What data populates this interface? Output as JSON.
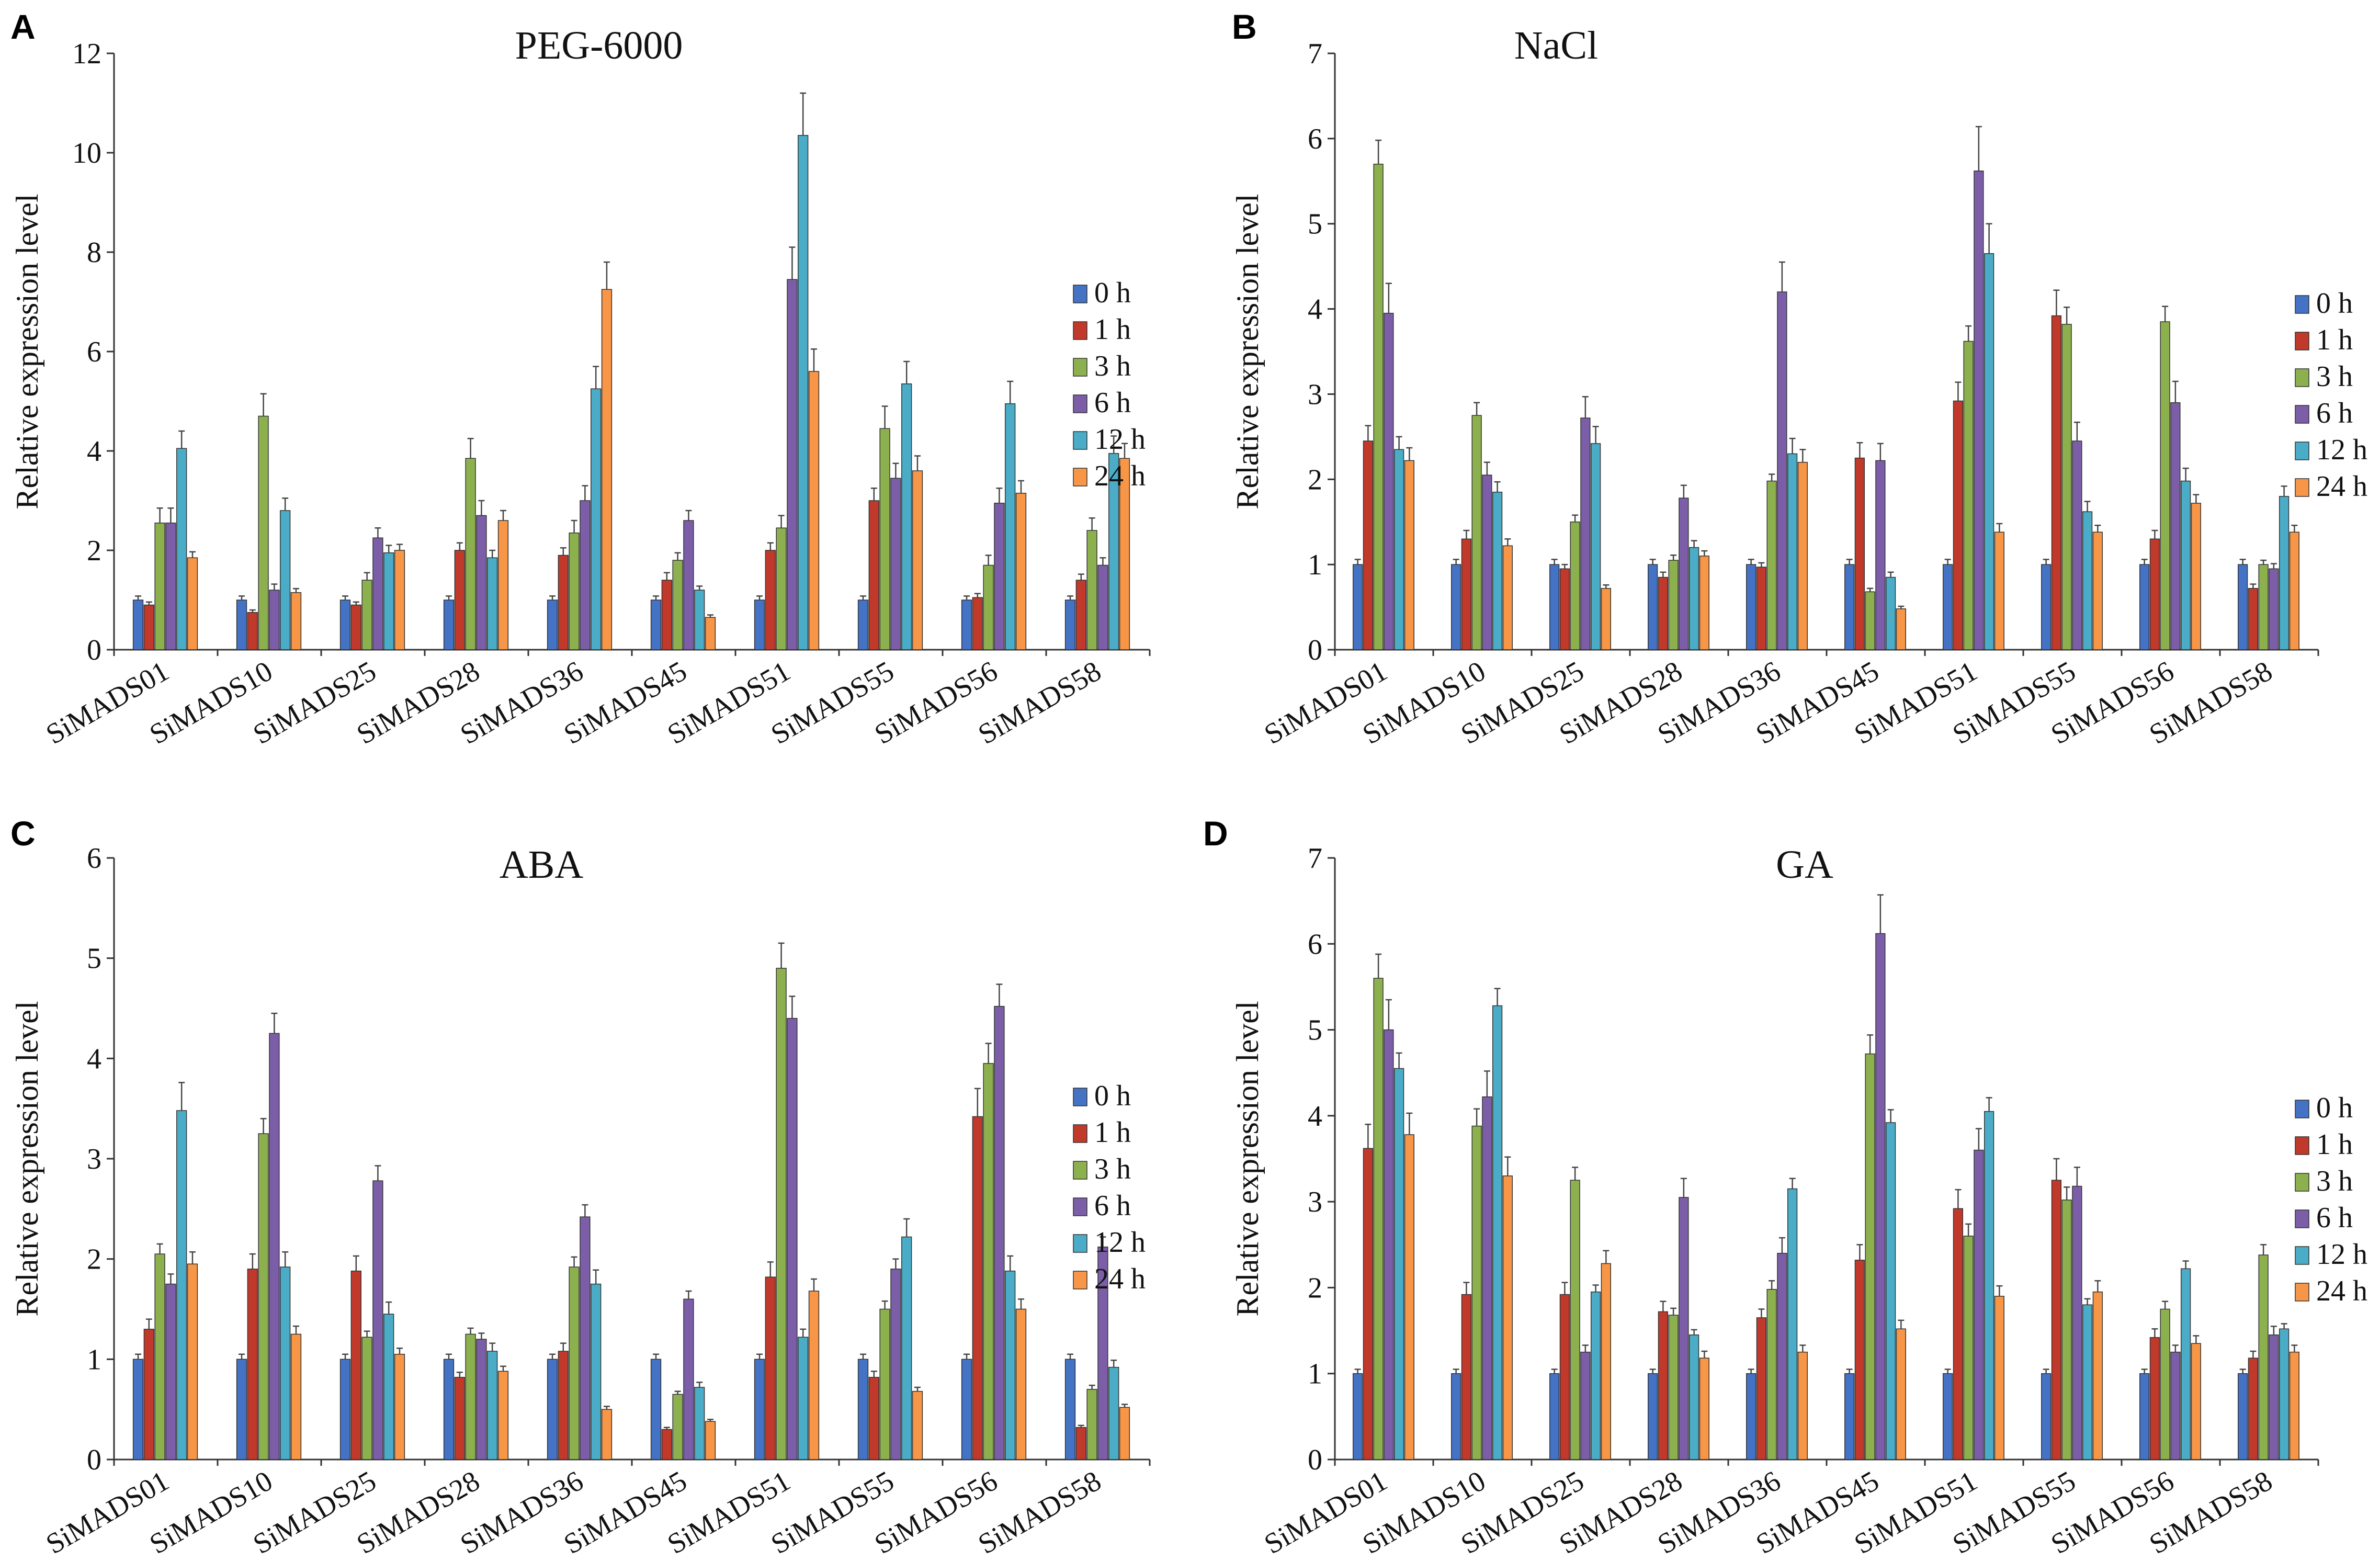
{
  "chart_data": [
    {
      "panel": "A",
      "type": "bar",
      "title": "PEG-6000",
      "ylabel": "Relative  expression level",
      "xlabel": "",
      "ylim": [
        0,
        12
      ],
      "yticks": [
        0,
        2,
        4,
        6,
        8,
        10,
        12
      ],
      "categories": [
        "SiMADS01",
        "SiMADS10",
        "SiMADS25",
        "SiMADS28",
        "SiMADS36",
        "SiMADS45",
        "SiMADS51",
        "SiMADS55",
        "SiMADS56",
        "SiMADS58"
      ],
      "series": [
        {
          "name": "0 h",
          "color": "#4472C4",
          "values": [
            1.0,
            1.0,
            1.0,
            1.0,
            1.0,
            1.0,
            1.0,
            1.0,
            1.0,
            1.0
          ],
          "errors": [
            0.08,
            0.08,
            0.08,
            0.08,
            0.08,
            0.08,
            0.08,
            0.08,
            0.08,
            0.08
          ]
        },
        {
          "name": "1 h",
          "color": "#C0392B",
          "values": [
            0.9,
            0.75,
            0.9,
            2.0,
            1.9,
            1.4,
            2.0,
            3.0,
            1.05,
            1.4
          ],
          "errors": [
            0.06,
            0.05,
            0.06,
            0.15,
            0.15,
            0.15,
            0.15,
            0.25,
            0.08,
            0.12
          ]
        },
        {
          "name": "3 h",
          "color": "#8DB04F",
          "values": [
            2.55,
            4.7,
            1.4,
            3.85,
            2.35,
            1.8,
            2.45,
            4.45,
            1.7,
            2.4
          ],
          "errors": [
            0.3,
            0.45,
            0.15,
            0.4,
            0.25,
            0.15,
            0.25,
            0.45,
            0.2,
            0.25
          ]
        },
        {
          "name": "6 h",
          "color": "#7B5EA7",
          "values": [
            2.55,
            1.2,
            2.25,
            2.7,
            3.0,
            2.6,
            7.45,
            3.45,
            2.95,
            1.7
          ],
          "errors": [
            0.3,
            0.12,
            0.2,
            0.3,
            0.3,
            0.2,
            0.65,
            0.3,
            0.3,
            0.15
          ]
        },
        {
          "name": "12 h",
          "color": "#4AACC6",
          "values": [
            4.05,
            2.8,
            1.95,
            1.85,
            5.25,
            1.2,
            10.35,
            5.35,
            4.95,
            3.95
          ],
          "errors": [
            0.35,
            0.25,
            0.15,
            0.15,
            0.45,
            0.08,
            0.85,
            0.45,
            0.45,
            0.35
          ]
        },
        {
          "name": "24 h",
          "color": "#F79646",
          "values": [
            1.85,
            1.15,
            2.0,
            2.6,
            7.25,
            0.65,
            5.6,
            3.6,
            3.15,
            3.85
          ],
          "errors": [
            0.12,
            0.08,
            0.12,
            0.2,
            0.55,
            0.05,
            0.45,
            0.3,
            0.25,
            0.3
          ]
        }
      ]
    },
    {
      "panel": "B",
      "type": "bar",
      "title": "NaCl",
      "ylabel": "Relative  expression level",
      "xlabel": "",
      "ylim": [
        0,
        7
      ],
      "yticks": [
        0,
        1,
        2,
        3,
        4,
        5,
        6,
        7
      ],
      "categories": [
        "SiMADS01",
        "SiMADS10",
        "SiMADS25",
        "SiMADS28",
        "SiMADS36",
        "SiMADS45",
        "SiMADS51",
        "SiMADS55",
        "SiMADS56",
        "SiMADS58"
      ],
      "series": [
        {
          "name": "0 h",
          "color": "#4472C4",
          "values": [
            1.0,
            1.0,
            1.0,
            1.0,
            1.0,
            1.0,
            1.0,
            1.0,
            1.0,
            1.0
          ],
          "errors": [
            0.06,
            0.06,
            0.06,
            0.06,
            0.06,
            0.06,
            0.06,
            0.06,
            0.06,
            0.06
          ]
        },
        {
          "name": "1 h",
          "color": "#C0392B",
          "values": [
            2.45,
            1.3,
            0.95,
            0.85,
            0.97,
            2.25,
            2.92,
            3.92,
            1.3,
            0.72
          ],
          "errors": [
            0.18,
            0.1,
            0.05,
            0.06,
            0.05,
            0.18,
            0.22,
            0.3,
            0.1,
            0.05
          ]
        },
        {
          "name": "3 h",
          "color": "#8DB04F",
          "values": [
            5.7,
            2.75,
            1.5,
            1.05,
            1.98,
            0.68,
            3.62,
            3.82,
            3.85,
            1.0
          ],
          "errors": [
            0.28,
            0.15,
            0.08,
            0.06,
            0.08,
            0.04,
            0.18,
            0.2,
            0.18,
            0.05
          ]
        },
        {
          "name": "6 h",
          "color": "#7B5EA7",
          "values": [
            3.95,
            2.05,
            2.72,
            1.78,
            4.2,
            2.22,
            5.62,
            2.45,
            2.9,
            0.95
          ],
          "errors": [
            0.35,
            0.15,
            0.25,
            0.15,
            0.35,
            0.2,
            0.52,
            0.22,
            0.25,
            0.06
          ]
        },
        {
          "name": "12 h",
          "color": "#4AACC6",
          "values": [
            2.35,
            1.85,
            2.42,
            1.2,
            2.3,
            0.85,
            4.65,
            1.62,
            1.98,
            1.8
          ],
          "errors": [
            0.15,
            0.12,
            0.2,
            0.08,
            0.18,
            0.06,
            0.35,
            0.12,
            0.15,
            0.12
          ]
        },
        {
          "name": "24 h",
          "color": "#F79646",
          "values": [
            2.22,
            1.22,
            0.72,
            1.1,
            2.2,
            0.48,
            1.38,
            1.38,
            1.72,
            1.38
          ],
          "errors": [
            0.15,
            0.08,
            0.04,
            0.06,
            0.15,
            0.03,
            0.1,
            0.08,
            0.1,
            0.08
          ]
        }
      ]
    },
    {
      "panel": "C",
      "type": "bar",
      "title": "ABA",
      "ylabel": "Relative  expression level",
      "xlabel": "",
      "ylim": [
        0,
        6
      ],
      "yticks": [
        0,
        1,
        2,
        3,
        4,
        5,
        6
      ],
      "categories": [
        "SiMADS01",
        "SiMADS10",
        "SiMADS25",
        "SiMADS28",
        "SiMADS36",
        "SiMADS45",
        "SiMADS51",
        "SiMADS55",
        "SiMADS56",
        "SiMADS58"
      ],
      "series": [
        {
          "name": "0 h",
          "color": "#4472C4",
          "values": [
            1.0,
            1.0,
            1.0,
            1.0,
            1.0,
            1.0,
            1.0,
            1.0,
            1.0,
            1.0
          ],
          "errors": [
            0.05,
            0.05,
            0.05,
            0.05,
            0.05,
            0.05,
            0.05,
            0.05,
            0.05,
            0.05
          ]
        },
        {
          "name": "1 h",
          "color": "#C0392B",
          "values": [
            1.3,
            1.9,
            1.88,
            0.82,
            1.08,
            0.3,
            1.82,
            0.82,
            3.42,
            0.32
          ],
          "errors": [
            0.1,
            0.15,
            0.15,
            0.05,
            0.08,
            0.02,
            0.15,
            0.06,
            0.28,
            0.02
          ]
        },
        {
          "name": "3 h",
          "color": "#8DB04F",
          "values": [
            2.05,
            3.25,
            1.22,
            1.25,
            1.92,
            0.65,
            4.9,
            1.5,
            3.95,
            0.7
          ],
          "errors": [
            0.1,
            0.15,
            0.06,
            0.06,
            0.1,
            0.03,
            0.25,
            0.08,
            0.2,
            0.04
          ]
        },
        {
          "name": "6 h",
          "color": "#7B5EA7",
          "values": [
            1.75,
            4.25,
            2.78,
            1.2,
            2.42,
            1.6,
            4.4,
            1.9,
            4.52,
            2.12
          ],
          "errors": [
            0.1,
            0.2,
            0.15,
            0.06,
            0.12,
            0.08,
            0.22,
            0.1,
            0.22,
            0.1
          ]
        },
        {
          "name": "12 h",
          "color": "#4AACC6",
          "values": [
            3.48,
            1.92,
            1.45,
            1.08,
            1.75,
            0.72,
            1.22,
            2.22,
            1.88,
            0.92
          ],
          "errors": [
            0.28,
            0.15,
            0.12,
            0.08,
            0.14,
            0.05,
            0.08,
            0.18,
            0.15,
            0.07
          ]
        },
        {
          "name": "24 h",
          "color": "#F79646",
          "values": [
            1.95,
            1.25,
            1.05,
            0.88,
            0.5,
            0.38,
            1.68,
            0.68,
            1.5,
            0.52
          ],
          "errors": [
            0.12,
            0.08,
            0.06,
            0.05,
            0.03,
            0.02,
            0.12,
            0.04,
            0.1,
            0.03
          ]
        }
      ]
    },
    {
      "panel": "D",
      "type": "bar",
      "title": "GA",
      "ylabel": "Relative  expression level",
      "xlabel": "",
      "ylim": [
        0,
        7
      ],
      "yticks": [
        0,
        1,
        2,
        3,
        4,
        5,
        6,
        7
      ],
      "categories": [
        "SiMADS01",
        "SiMADS10",
        "SiMADS25",
        "SiMADS28",
        "SiMADS36",
        "SiMADS45",
        "SiMADS51",
        "SiMADS55",
        "SiMADS56",
        "SiMADS58"
      ],
      "series": [
        {
          "name": "0 h",
          "color": "#4472C4",
          "values": [
            1.0,
            1.0,
            1.0,
            1.0,
            1.0,
            1.0,
            1.0,
            1.0,
            1.0,
            1.0
          ],
          "errors": [
            0.05,
            0.05,
            0.05,
            0.05,
            0.05,
            0.05,
            0.05,
            0.05,
            0.05,
            0.05
          ]
        },
        {
          "name": "1 h",
          "color": "#C0392B",
          "values": [
            3.62,
            1.92,
            1.92,
            1.72,
            1.65,
            2.32,
            2.92,
            3.25,
            1.42,
            1.18
          ],
          "errors": [
            0.28,
            0.14,
            0.14,
            0.12,
            0.1,
            0.18,
            0.22,
            0.25,
            0.1,
            0.08
          ]
        },
        {
          "name": "3 h",
          "color": "#8DB04F",
          "values": [
            5.6,
            3.88,
            3.25,
            1.68,
            1.98,
            4.72,
            2.6,
            3.02,
            1.75,
            2.38
          ],
          "errors": [
            0.28,
            0.2,
            0.15,
            0.08,
            0.1,
            0.22,
            0.14,
            0.15,
            0.09,
            0.12
          ]
        },
        {
          "name": "6 h",
          "color": "#7B5EA7",
          "values": [
            5.0,
            4.22,
            1.25,
            3.05,
            2.4,
            6.12,
            3.6,
            3.18,
            1.25,
            1.45
          ],
          "errors": [
            0.35,
            0.3,
            0.08,
            0.22,
            0.18,
            0.45,
            0.25,
            0.22,
            0.08,
            0.1
          ]
        },
        {
          "name": "12 h",
          "color": "#4AACC6",
          "values": [
            4.55,
            5.28,
            1.95,
            1.45,
            3.15,
            3.92,
            4.05,
            1.8,
            2.22,
            1.52
          ],
          "errors": [
            0.18,
            0.2,
            0.08,
            0.06,
            0.12,
            0.15,
            0.16,
            0.07,
            0.09,
            0.06
          ]
        },
        {
          "name": "24 h",
          "color": "#F79646",
          "values": [
            3.78,
            3.3,
            2.28,
            1.18,
            1.25,
            1.52,
            1.9,
            1.95,
            1.35,
            1.25
          ],
          "errors": [
            0.25,
            0.22,
            0.15,
            0.08,
            0.08,
            0.1,
            0.12,
            0.13,
            0.09,
            0.08
          ]
        }
      ]
    }
  ]
}
